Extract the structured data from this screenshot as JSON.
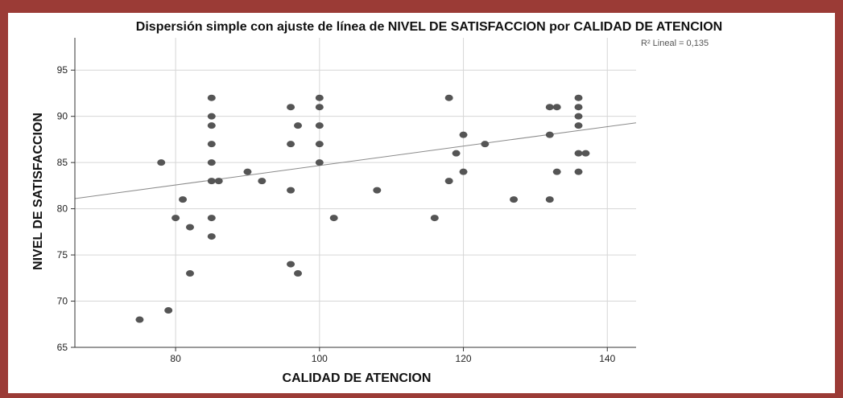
{
  "chart_data": {
    "type": "scatter",
    "title": "Dispersión simple con ajuste de línea de NIVEL DE SATISFACCION por CALIDAD DE ATENCION",
    "xlabel": "CALIDAD DE ATENCION",
    "ylabel": "NIVEL DE SATISFACCION",
    "xlim": [
      66,
      144
    ],
    "ylim": [
      65,
      98.5
    ],
    "xticks": [
      80,
      100,
      120,
      140
    ],
    "yticks": [
      65,
      70,
      75,
      80,
      85,
      90,
      95
    ],
    "xtick_labels": [
      "80",
      "100",
      "120",
      "140"
    ],
    "ytick_labels": [
      "65",
      "70",
      "75",
      "80",
      "85",
      "90",
      "95"
    ],
    "grid": true,
    "annotation": "R² Lineal = 0,135",
    "fit_line": {
      "x": [
        66,
        144
      ],
      "y": [
        81.1,
        89.3
      ]
    },
    "colors": {
      "points": "#555555",
      "fit_line": "#8a8a8a",
      "grid": "#d6d6d6",
      "frame": "#9b3b36"
    },
    "points": [
      {
        "x": 75,
        "y": 68
      },
      {
        "x": 78,
        "y": 85
      },
      {
        "x": 79,
        "y": 69
      },
      {
        "x": 80,
        "y": 79
      },
      {
        "x": 81,
        "y": 81
      },
      {
        "x": 82,
        "y": 78
      },
      {
        "x": 82,
        "y": 73
      },
      {
        "x": 85,
        "y": 92
      },
      {
        "x": 85,
        "y": 90
      },
      {
        "x": 85,
        "y": 89
      },
      {
        "x": 85,
        "y": 87
      },
      {
        "x": 85,
        "y": 85
      },
      {
        "x": 85,
        "y": 83
      },
      {
        "x": 85,
        "y": 79
      },
      {
        "x": 85,
        "y": 77
      },
      {
        "x": 86,
        "y": 83
      },
      {
        "x": 90,
        "y": 84
      },
      {
        "x": 92,
        "y": 83
      },
      {
        "x": 96,
        "y": 91
      },
      {
        "x": 96,
        "y": 87
      },
      {
        "x": 96,
        "y": 82
      },
      {
        "x": 96,
        "y": 74
      },
      {
        "x": 97,
        "y": 89
      },
      {
        "x": 97,
        "y": 73
      },
      {
        "x": 100,
        "y": 92
      },
      {
        "x": 100,
        "y": 91
      },
      {
        "x": 100,
        "y": 89
      },
      {
        "x": 100,
        "y": 87
      },
      {
        "x": 100,
        "y": 85
      },
      {
        "x": 102,
        "y": 79
      },
      {
        "x": 108,
        "y": 82
      },
      {
        "x": 116,
        "y": 79
      },
      {
        "x": 118,
        "y": 92
      },
      {
        "x": 118,
        "y": 83
      },
      {
        "x": 119,
        "y": 86
      },
      {
        "x": 120,
        "y": 88
      },
      {
        "x": 120,
        "y": 84
      },
      {
        "x": 123,
        "y": 87
      },
      {
        "x": 127,
        "y": 81
      },
      {
        "x": 132,
        "y": 91
      },
      {
        "x": 132,
        "y": 88
      },
      {
        "x": 132,
        "y": 81
      },
      {
        "x": 133,
        "y": 91
      },
      {
        "x": 133,
        "y": 84
      },
      {
        "x": 136,
        "y": 92
      },
      {
        "x": 136,
        "y": 91
      },
      {
        "x": 136,
        "y": 90
      },
      {
        "x": 136,
        "y": 89
      },
      {
        "x": 136,
        "y": 86
      },
      {
        "x": 136,
        "y": 84
      },
      {
        "x": 137,
        "y": 86
      }
    ]
  }
}
